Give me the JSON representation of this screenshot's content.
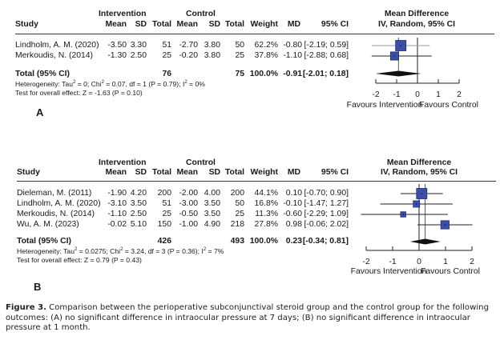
{
  "chart_data": [
    {
      "type": "forest",
      "panel": "A",
      "headers": {
        "study": "Study",
        "intervention_group": "Intervention",
        "control_group": "Control",
        "mean": "Mean",
        "sd": "SD",
        "total": "Total",
        "weight": "Weight",
        "md": "MD",
        "ci": "95% CI",
        "plot_title_1": "Mean Difference",
        "plot_title_2": "IV, Random, 95% CI"
      },
      "studies": [
        {
          "study": "Lindholm, A. M. (2020)",
          "int_mean": "-3.50",
          "int_sd": "3.30",
          "int_total": "51",
          "ctl_mean": "-2.70",
          "ctl_sd": "3.80",
          "ctl_total": "50",
          "weight": "62.2%",
          "md": "-0.80",
          "ci": "[-2.19; 0.59]",
          "md_value": -0.8,
          "ci_low": -2.19,
          "ci_high": 0.59,
          "weight_value": 62.2
        },
        {
          "study": "Merkoudis, N. (2014)",
          "int_mean": "-1.30",
          "int_sd": "2.50",
          "int_total": "25",
          "ctl_mean": "-0.20",
          "ctl_sd": "3.80",
          "ctl_total": "25",
          "weight": "37.8%",
          "md": "-1.10",
          "ci": "[-2.88; 0.68]",
          "md_value": -1.1,
          "ci_low": -2.88,
          "ci_high": 0.68,
          "weight_value": 37.8
        }
      ],
      "total": {
        "label": "Total (95% CI)",
        "int_total": "76",
        "ctl_total": "75",
        "weight": "100.0%",
        "md": "-0.91",
        "ci": "[-2.01; 0.18]",
        "md_value": -0.91,
        "ci_low": -2.01,
        "ci_high": 0.18
      },
      "heterogeneity": {
        "prefix": "Heterogeneity: Tau",
        "tau2": " = 0; Chi",
        "chi2": " = 0.07, df = 1 (P = 0.79); I",
        "i2": " = 0%"
      },
      "overall_effect": "Test for overall effect: Z = -1.63 (P = 0.10)",
      "xlim": [
        -2,
        2
      ],
      "xticks": [
        -2,
        -1,
        0,
        1,
        2
      ],
      "xtick_labels": [
        "-2",
        "-1",
        "0",
        "1",
        "2"
      ],
      "favours_left": "Favours Intervention",
      "favours_right": "Favours Control",
      "label": "A"
    },
    {
      "type": "forest",
      "panel": "B",
      "headers": {
        "study": "Study",
        "intervention_group": "Intervention",
        "control_group": "Control",
        "mean": "Mean",
        "sd": "SD",
        "total": "Total",
        "weight": "Weight",
        "md": "MD",
        "ci": "95% CI",
        "plot_title_1": "Mean Difference",
        "plot_title_2": "IV, Random, 95% CI"
      },
      "studies": [
        {
          "study": "Dieleman, M. (2011)",
          "int_mean": "-1.90",
          "int_sd": "4.20",
          "int_total": "200",
          "ctl_mean": "-2.00",
          "ctl_sd": "4.00",
          "ctl_total": "200",
          "weight": "44.1%",
          "md": "0.10",
          "ci": "[-0.70; 0.90]",
          "md_value": 0.1,
          "ci_low": -0.7,
          "ci_high": 0.9,
          "weight_value": 44.1
        },
        {
          "study": "Lindholm, A. M. (2020)",
          "int_mean": "-3.10",
          "int_sd": "3.50",
          "int_total": "51",
          "ctl_mean": "-3.00",
          "ctl_sd": "3.50",
          "ctl_total": "50",
          "weight": "16.8%",
          "md": "-0.10",
          "ci": "[-1.47; 1.27]",
          "md_value": -0.1,
          "ci_low": -1.47,
          "ci_high": 1.27,
          "weight_value": 16.8
        },
        {
          "study": "Merkoudis, N. (2014)",
          "int_mean": "-1.10",
          "int_sd": "2.50",
          "int_total": "25",
          "ctl_mean": "-0.50",
          "ctl_sd": "3.50",
          "ctl_total": "25",
          "weight": "11.3%",
          "md": "-0.60",
          "ci": "[-2.29; 1.09]",
          "md_value": -0.6,
          "ci_low": -2.29,
          "ci_high": 1.09,
          "weight_value": 11.3
        },
        {
          "study": "Wu, A. M. (2023)",
          "int_mean": "-0.02",
          "int_sd": "5.10",
          "int_total": "150",
          "ctl_mean": "-1.00",
          "ctl_sd": "4.90",
          "ctl_total": "218",
          "weight": "27.8%",
          "md": "0.98",
          "ci": "[-0.06; 2.02]",
          "md_value": 0.98,
          "ci_low": -0.06,
          "ci_high": 2.02,
          "weight_value": 27.8
        }
      ],
      "total": {
        "label": "Total (95% CI)",
        "int_total": "426",
        "ctl_total": "493",
        "weight": "100.0%",
        "md": "0.23",
        "ci": "[-0.34; 0.81]",
        "md_value": 0.23,
        "ci_low": -0.34,
        "ci_high": 0.81
      },
      "heterogeneity": {
        "prefix": "Heterogeneity: Tau",
        "tau2": " = 0.0275; Chi",
        "chi2": " = 3.24, df = 3 (P = 0.36); I",
        "i2": " = 7%"
      },
      "overall_effect": "Test for overall effect: Z = 0.79 (P = 0.43)",
      "xlim": [
        -2,
        2
      ],
      "xticks": [
        -2,
        -1,
        0,
        1,
        2
      ],
      "xtick_labels": [
        "-2",
        "-1",
        "0",
        "1",
        "2"
      ],
      "favours_left": "Favours Intervention",
      "favours_right": "Favours Control",
      "label": "B"
    }
  ],
  "colors": {
    "square_fill": "#3b4ea8",
    "square_stroke": "#1e2a6e",
    "ci_line_first": "#9a9a9a",
    "ci_line": "#222222",
    "diamond": "#111111"
  },
  "caption": {
    "lead": "Figure 3.",
    "text": " Comparison between the perioperative subconjunctival steroid group and the control group for the following outcomes: (A) no significant difference in intraocular pressure at 7 days; (B) no significant difference in intraocular pressure at 1 month."
  }
}
